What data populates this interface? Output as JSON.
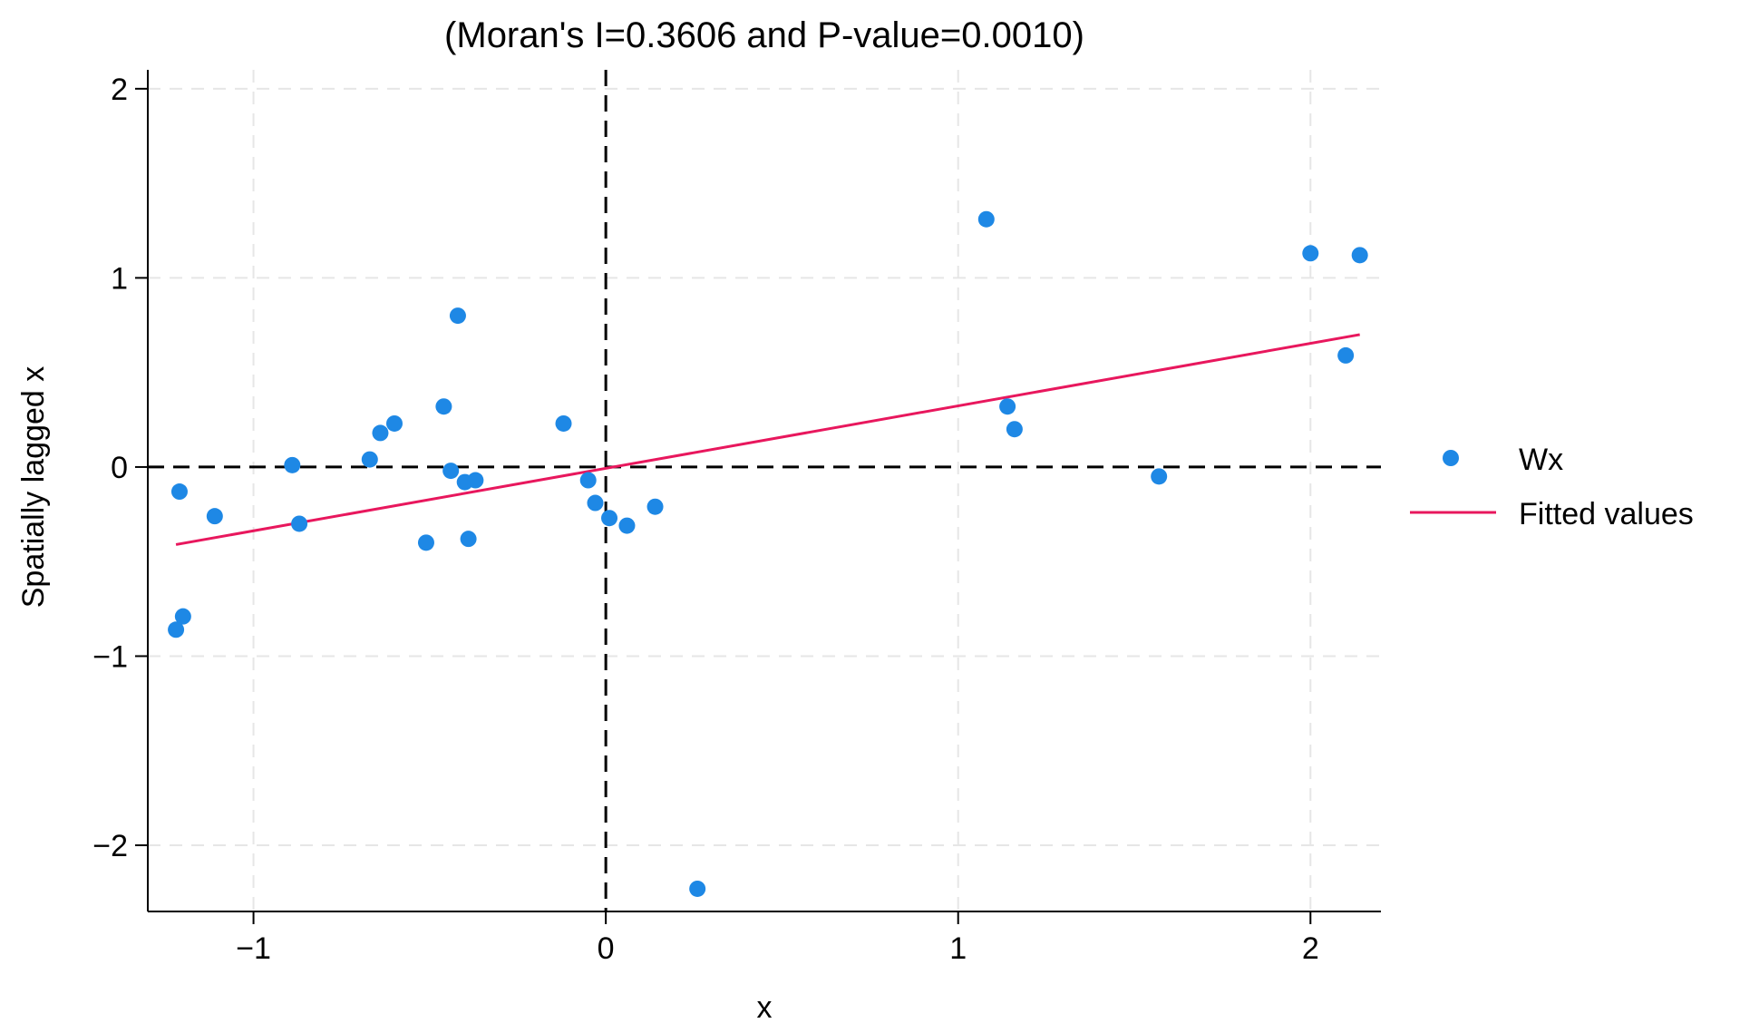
{
  "chart_data": {
    "type": "scatter",
    "title": "(Moran's I=0.3606 and P-value=0.0010)",
    "xlabel": "x",
    "ylabel": "Spatially lagged x",
    "xlim": [
      -1.3,
      2.2
    ],
    "ylim": [
      -2.35,
      2.1
    ],
    "xticks": [
      -1,
      0,
      1,
      2
    ],
    "xtick_labels": [
      "−1",
      "0",
      "1",
      "2"
    ],
    "yticks": [
      -2,
      -1,
      0,
      1,
      2
    ],
    "ytick_labels": [
      "−2",
      "−1",
      "0",
      "1",
      "2"
    ],
    "grid": true,
    "reference_lines": {
      "x": 0,
      "y": 0,
      "style": "dashed"
    },
    "legend_position": "right",
    "series": [
      {
        "name": "Wx",
        "type": "scatter",
        "color": "#1E88E5",
        "points": [
          [
            -1.21,
            -0.13
          ],
          [
            -1.22,
            -0.86
          ],
          [
            -1.2,
            -0.79
          ],
          [
            -1.11,
            -0.26
          ],
          [
            -0.89,
            0.01
          ],
          [
            -0.87,
            -0.3
          ],
          [
            -0.67,
            0.04
          ],
          [
            -0.64,
            0.18
          ],
          [
            -0.6,
            0.23
          ],
          [
            -0.51,
            -0.4
          ],
          [
            -0.46,
            0.32
          ],
          [
            -0.44,
            -0.02
          ],
          [
            -0.42,
            0.8
          ],
          [
            -0.4,
            -0.08
          ],
          [
            -0.39,
            -0.38
          ],
          [
            -0.37,
            -0.07
          ],
          [
            -0.12,
            0.23
          ],
          [
            -0.05,
            -0.07
          ],
          [
            -0.03,
            -0.19
          ],
          [
            0.01,
            -0.27
          ],
          [
            0.06,
            -0.31
          ],
          [
            0.14,
            -0.21
          ],
          [
            0.26,
            -2.23
          ],
          [
            1.08,
            1.31
          ],
          [
            1.14,
            0.32
          ],
          [
            1.16,
            0.2
          ],
          [
            1.57,
            -0.05
          ],
          [
            2.0,
            1.13
          ],
          [
            2.1,
            0.59
          ],
          [
            2.14,
            1.12
          ]
        ]
      },
      {
        "name": "Fitted values",
        "type": "line",
        "color": "#E8175D",
        "points": [
          [
            -1.22,
            -0.41
          ],
          [
            2.14,
            0.7
          ]
        ]
      }
    ]
  }
}
